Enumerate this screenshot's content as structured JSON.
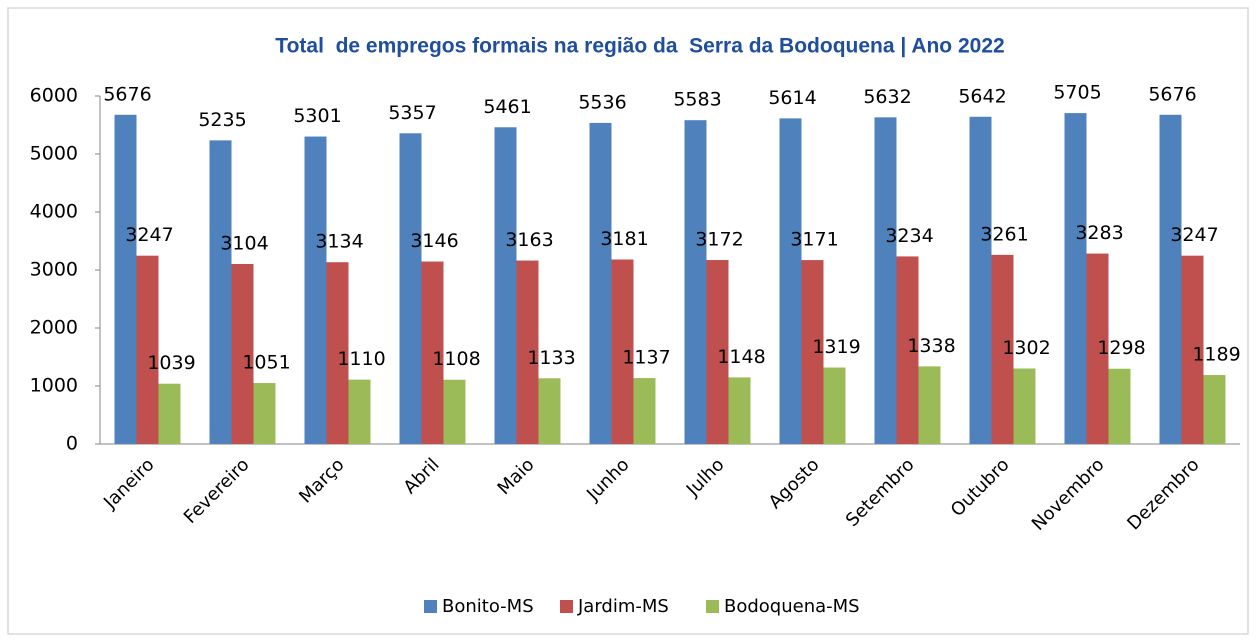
{
  "chart_data": {
    "type": "bar",
    "title": "Total  de empregos formais na região da  Serra da Bodoquena | Ano 2022",
    "categories": [
      "Janeiro",
      "Fevereiro",
      "Março",
      "Abril",
      "Maio",
      "Junho",
      "Julho",
      "Agosto",
      "Setembro",
      "Outubro",
      "Novembro",
      "Dezembro"
    ],
    "series": [
      {
        "name": "Bonito-MS",
        "color": "#4f81bd",
        "values": [
          5676,
          5235,
          5301,
          5357,
          5461,
          5536,
          5583,
          5614,
          5632,
          5642,
          5705,
          5676
        ]
      },
      {
        "name": "Jardim-MS",
        "color": "#c0504d",
        "values": [
          3247,
          3104,
          3134,
          3146,
          3163,
          3181,
          3172,
          3171,
          3234,
          3261,
          3283,
          3247
        ]
      },
      {
        "name": "Bodoquena-MS",
        "color": "#9bbb59",
        "values": [
          1039,
          1051,
          1110,
          1108,
          1133,
          1137,
          1148,
          1319,
          1338,
          1302,
          1298,
          1189
        ]
      }
    ],
    "ylim": [
      0,
      6000
    ],
    "yticks": [
      0,
      1000,
      2000,
      3000,
      4000,
      5000,
      6000
    ],
    "grid": false,
    "legend": "bottom"
  }
}
